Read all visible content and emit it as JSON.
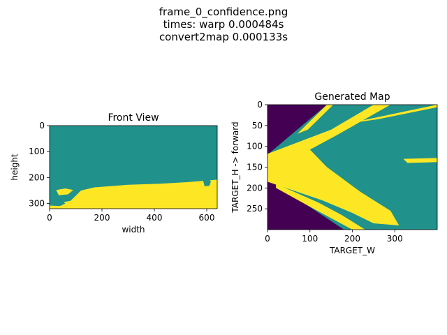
{
  "figure": {
    "suptitle_lines": [
      "frame_0_confidence.png",
      "times: warp 0.000484s",
      "convert2map 0.000133s"
    ]
  },
  "colors": {
    "low": "#440154",
    "mid": "#21918c",
    "high": "#fde725"
  },
  "chart_data": [
    {
      "type": "heatmap",
      "title": "Front View",
      "xlabel": "width",
      "ylabel": "height",
      "xlim": [
        0,
        640
      ],
      "ylim": [
        320,
        0
      ],
      "xticks": [
        0,
        200,
        400,
        600
      ],
      "yticks": [
        0,
        100,
        200,
        300
      ],
      "regions": [
        {
          "name": "mid",
          "color": "#21918c",
          "polygon": [
            [
              0,
              0
            ],
            [
              640,
              0
            ],
            [
              640,
              320
            ],
            [
              0,
              320
            ]
          ]
        },
        {
          "name": "high",
          "color": "#fde725",
          "polygon": [
            [
              0,
              305
            ],
            [
              80,
              290
            ],
            [
              120,
              250
            ],
            [
              170,
              238
            ],
            [
              300,
              228
            ],
            [
              420,
              224
            ],
            [
              520,
              218
            ],
            [
              600,
              212
            ],
            [
              640,
              208
            ],
            [
              640,
              320
            ],
            [
              0,
              320
            ]
          ]
        },
        {
          "name": "high",
          "color": "#fde725",
          "polygon": [
            [
              25,
              248
            ],
            [
              60,
              242
            ],
            [
              90,
              248
            ],
            [
              70,
              265
            ],
            [
              35,
              268
            ]
          ]
        },
        {
          "name": "mid",
          "color": "#21918c",
          "polygon": [
            [
              0,
              288
            ],
            [
              45,
              286
            ],
            [
              60,
              300
            ],
            [
              40,
              310
            ],
            [
              0,
              308
            ]
          ]
        },
        {
          "name": "mid",
          "color": "#21918c",
          "polygon": [
            [
              586,
              212
            ],
            [
              604,
              204
            ],
            [
              616,
              215
            ],
            [
              610,
              232
            ],
            [
              592,
              234
            ]
          ]
        }
      ]
    },
    {
      "type": "heatmap",
      "title": "Generated Map",
      "xlabel": "TARGET_W",
      "ylabel": "TARGET_H -> forward",
      "xlim": [
        0,
        400
      ],
      "ylim": [
        300,
        0
      ],
      "xticks": [
        0,
        100,
        200,
        300
      ],
      "yticks": [
        0,
        50,
        100,
        150,
        200,
        250
      ],
      "regions": [
        {
          "name": "low",
          "color": "#440154",
          "polygon": [
            [
              0,
              0
            ],
            [
              400,
              0
            ],
            [
              400,
              300
            ],
            [
              0,
              300
            ]
          ]
        },
        {
          "name": "mid",
          "color": "#21918c",
          "polygon": [
            [
              140,
              0
            ],
            [
              400,
              0
            ],
            [
              400,
              300
            ],
            [
              180,
              300
            ],
            [
              0,
              178
            ],
            [
              0,
              120
            ]
          ]
        },
        {
          "name": "high",
          "color": "#fde725",
          "polygon": [
            [
              0,
              118
            ],
            [
              150,
              60
            ],
            [
              250,
              0
            ],
            [
              290,
              0
            ],
            [
              160,
              75
            ],
            [
              100,
              108
            ],
            [
              140,
              150
            ],
            [
              220,
              210
            ],
            [
              290,
              255
            ],
            [
              310,
              290
            ],
            [
              250,
              285
            ],
            [
              200,
              260
            ],
            [
              130,
              230
            ],
            [
              0,
              185
            ]
          ]
        },
        {
          "name": "high",
          "color": "#fde725",
          "polygon": [
            [
              70,
              70
            ],
            [
              130,
              10
            ],
            [
              140,
              0
            ],
            [
              155,
              0
            ],
            [
              95,
              60
            ]
          ]
        },
        {
          "name": "high",
          "color": "#fde725",
          "polygon": [
            [
              190,
              45
            ],
            [
              330,
              15
            ],
            [
              400,
              0
            ],
            [
              400,
              6
            ],
            [
              260,
              35
            ]
          ]
        },
        {
          "name": "high",
          "color": "#fde725",
          "polygon": [
            [
              320,
              130
            ],
            [
              400,
              128
            ],
            [
              400,
              138
            ],
            [
              330,
              140
            ]
          ]
        },
        {
          "name": "high",
          "color": "#fde725",
          "polygon": [
            [
              20,
              190
            ],
            [
              120,
              235
            ],
            [
              175,
              265
            ],
            [
              230,
              300
            ],
            [
              200,
              300
            ],
            [
              100,
              245
            ],
            [
              20,
              200
            ]
          ]
        },
        {
          "name": "low",
          "color": "#440154",
          "polygon": [
            [
              0,
              190
            ],
            [
              165,
              300
            ],
            [
              0,
              300
            ]
          ]
        }
      ]
    }
  ]
}
